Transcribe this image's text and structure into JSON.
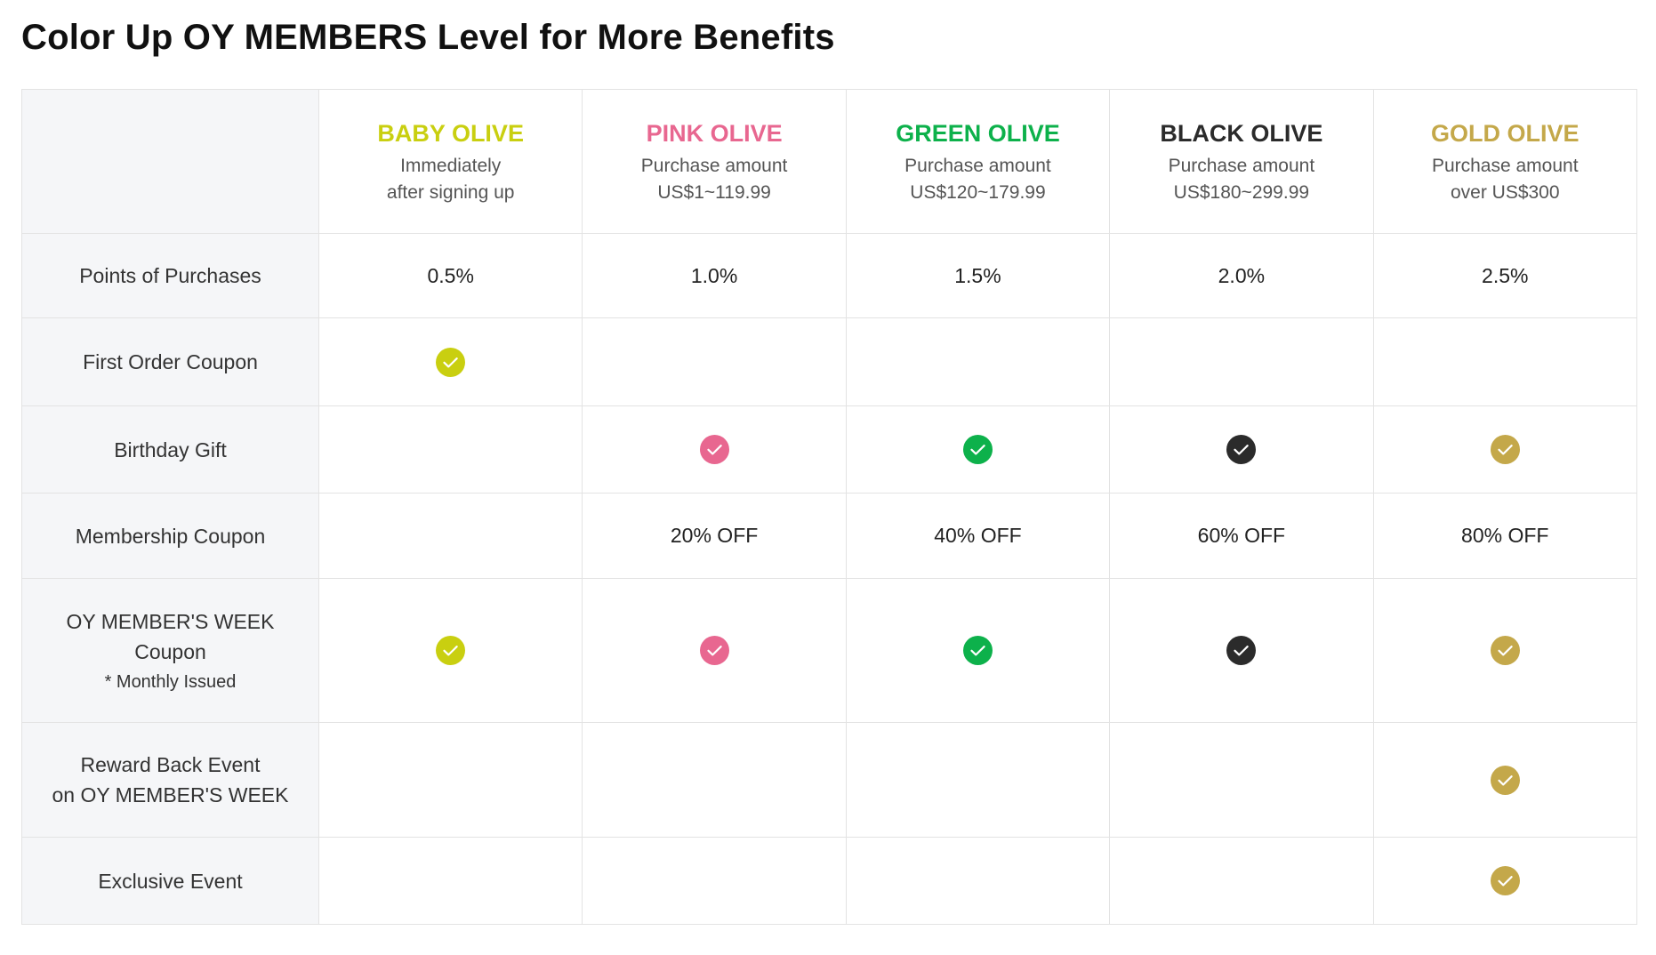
{
  "title": "Color Up OY MEMBERS Level for More Benefits",
  "colors": {
    "baby": "#c9cf10",
    "pink": "#e86790",
    "green": "#0db14b",
    "black": "#2b2b2b",
    "gold": "#c4a84a"
  },
  "tiers": [
    {
      "name": "BABY OLIVE",
      "desc1": "Immediately",
      "desc2": "after signing up"
    },
    {
      "name": "PINK OLIVE",
      "desc1": "Purchase amount",
      "desc2": "US$1~119.99"
    },
    {
      "name": "GREEN OLIVE",
      "desc1": "Purchase amount",
      "desc2": "US$120~179.99"
    },
    {
      "name": "BLACK OLIVE",
      "desc1": "Purchase amount",
      "desc2": "US$180~299.99"
    },
    {
      "name": "GOLD OLIVE",
      "desc1": "Purchase amount",
      "desc2": "over US$300"
    }
  ],
  "rows": {
    "points": {
      "label": "Points of Purchases",
      "values": [
        "0.5%",
        "1.0%",
        "1.5%",
        "2.0%",
        "2.5%"
      ]
    },
    "first_order": {
      "label": "First Order Coupon",
      "checks": [
        true,
        false,
        false,
        false,
        false
      ]
    },
    "birthday": {
      "label": "Birthday Gift",
      "checks": [
        false,
        true,
        true,
        true,
        true
      ]
    },
    "membership": {
      "label": "Membership Coupon",
      "values": [
        "",
        "20% OFF",
        "40% OFF",
        "60% OFF",
        "80% OFF"
      ]
    },
    "week": {
      "label_line1": "OY MEMBER'S WEEK",
      "label_line2": "Coupon",
      "note": "* Monthly Issued",
      "checks": [
        true,
        true,
        true,
        true,
        true
      ]
    },
    "reward": {
      "label_line1": "Reward Back Event",
      "label_line2": "on OY MEMBER'S WEEK",
      "checks": [
        false,
        false,
        false,
        false,
        true
      ]
    },
    "exclusive": {
      "label": "Exclusive Event",
      "checks": [
        false,
        false,
        false,
        false,
        true
      ]
    }
  },
  "icons": {
    "check": "check-circle-icon"
  }
}
